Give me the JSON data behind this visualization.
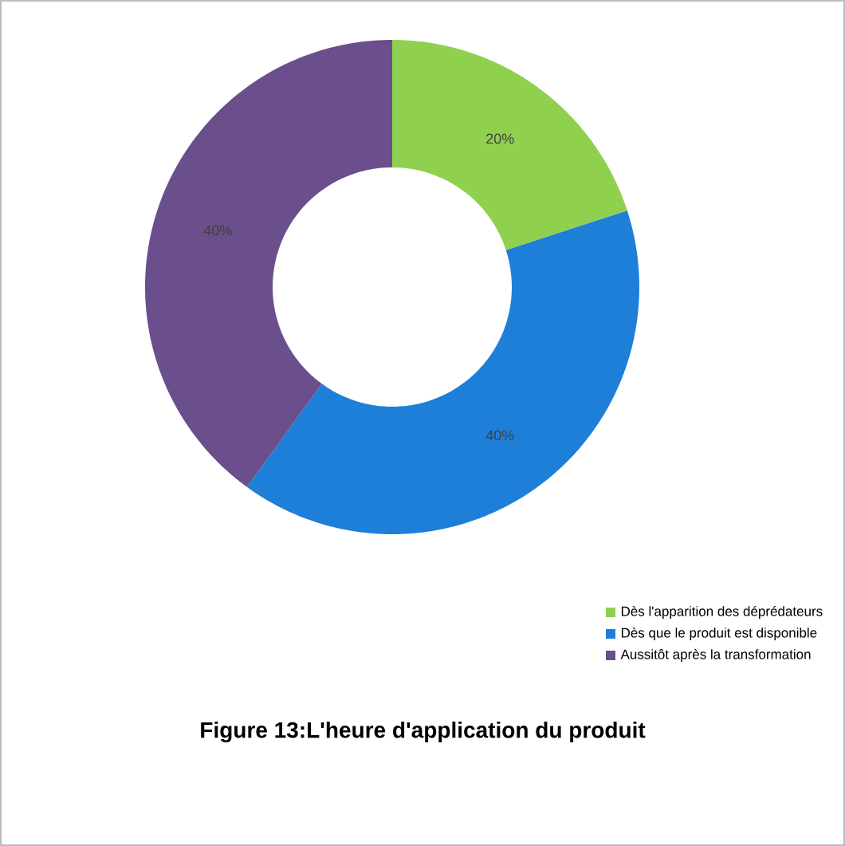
{
  "chart_data": {
    "type": "donut",
    "title": "Figure 13:L'heure d'application du produit",
    "categories": [
      "Dès l'apparition des déprédateurs",
      "Dès que le produit est disponible",
      "Aussitôt après la transformation"
    ],
    "values": [
      20,
      40,
      40
    ],
    "colors": [
      "#8fd14f",
      "#1e7fd8",
      "#6a4f8c"
    ],
    "value_labels": [
      "20%",
      "40%",
      "40%"
    ],
    "legend": "bottom right"
  }
}
